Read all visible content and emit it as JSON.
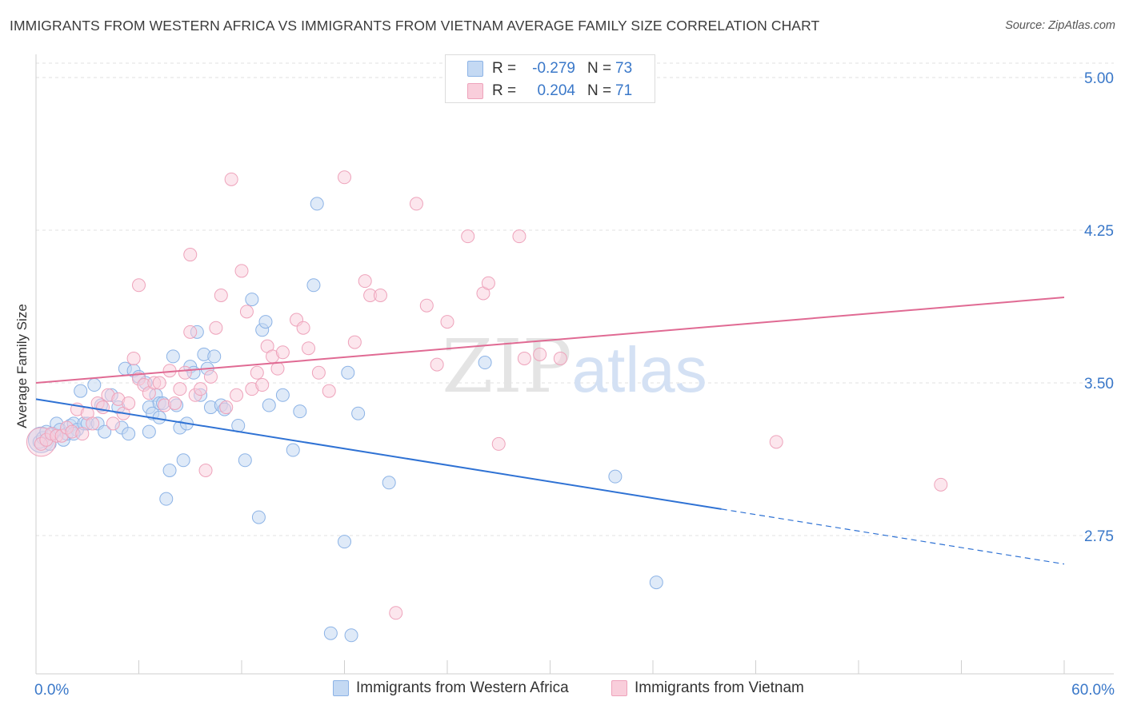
{
  "title": "IMMIGRANTS FROM WESTERN AFRICA VS IMMIGRANTS FROM VIETNAM AVERAGE FAMILY SIZE CORRELATION CHART",
  "source": "Source: ZipAtlas.com",
  "watermark": "ZIPatlas",
  "colors": {
    "blue_fill": "#c4d9f3",
    "blue_stroke": "#8cb3e6",
    "blue_line": "#2f72d4",
    "pink_fill": "#f9cedb",
    "pink_stroke": "#eea3bb",
    "pink_line": "#e06a93",
    "tick_label": "#3a78c9",
    "grid": "#e2e2e2"
  },
  "legend_top": [
    {
      "r_label": "R =",
      "r_value": "-0.279",
      "n_label": "N =",
      "n_value": "73"
    },
    {
      "r_label": "R =",
      "r_value": "0.204",
      "n_label": "N =",
      "n_value": "71"
    }
  ],
  "legend_bottom": [
    "Immigrants from Western Africa",
    "Immigrants from Vietnam"
  ],
  "chart_data": {
    "type": "scatter",
    "title": "IMMIGRANTS FROM WESTERN AFRICA VS IMMIGRANTS FROM VIETNAM AVERAGE FAMILY SIZE CORRELATION CHART",
    "xlabel": "",
    "ylabel": "Average Family Size",
    "xlim": [
      0,
      60
    ],
    "ylim": [
      2.0,
      5.15
    ],
    "x_tick_labels": [
      "0.0%",
      "60.0%"
    ],
    "y_ticks": [
      2.75,
      3.5,
      4.25,
      5.0
    ],
    "y_tick_labels": [
      "2.75",
      "3.50",
      "4.25",
      "5.00"
    ],
    "grid": true,
    "legend_position": "top-center and bottom",
    "series": [
      {
        "name": "Immigrants from Western Africa",
        "color": "#8cb3e6",
        "R": -0.279,
        "N": 73,
        "trend": {
          "x0": 0,
          "y0": 3.42,
          "x1": 40,
          "y1": 2.88,
          "dashed_to_x": 60,
          "dashed_to_y": 2.61
        },
        "points": [
          [
            0.2,
            3.21
          ],
          [
            0.4,
            3.23
          ],
          [
            0.6,
            3.26
          ],
          [
            0.8,
            3.2
          ],
          [
            1.0,
            3.25
          ],
          [
            1.2,
            3.3
          ],
          [
            1.4,
            3.27
          ],
          [
            1.6,
            3.22
          ],
          [
            1.8,
            3.25
          ],
          [
            2.0,
            3.29
          ],
          [
            2.2,
            3.3
          ],
          [
            2.4,
            3.27
          ],
          [
            2.6,
            3.46
          ],
          [
            2.8,
            3.3
          ],
          [
            3.0,
            3.3
          ],
          [
            3.4,
            3.49
          ],
          [
            3.6,
            3.3
          ],
          [
            3.8,
            3.39
          ],
          [
            4.0,
            3.26
          ],
          [
            4.4,
            3.44
          ],
          [
            4.8,
            3.38
          ],
          [
            5.0,
            3.28
          ],
          [
            5.2,
            3.57
          ],
          [
            5.4,
            3.25
          ],
          [
            5.7,
            3.56
          ],
          [
            6.0,
            3.53
          ],
          [
            6.4,
            3.5
          ],
          [
            6.6,
            3.26
          ],
          [
            6.6,
            3.38
          ],
          [
            6.8,
            3.35
          ],
          [
            7.0,
            3.44
          ],
          [
            7.2,
            3.4
          ],
          [
            7.4,
            3.4
          ],
          [
            7.6,
            2.93
          ],
          [
            7.8,
            3.07
          ],
          [
            8.0,
            3.63
          ],
          [
            8.2,
            3.39
          ],
          [
            8.4,
            3.28
          ],
          [
            8.6,
            3.12
          ],
          [
            8.8,
            3.3
          ],
          [
            9.0,
            3.58
          ],
          [
            9.2,
            3.55
          ],
          [
            9.4,
            3.75
          ],
          [
            9.6,
            3.44
          ],
          [
            9.8,
            3.64
          ],
          [
            10.0,
            3.57
          ],
          [
            10.2,
            3.38
          ],
          [
            10.4,
            3.63
          ],
          [
            10.8,
            3.39
          ],
          [
            11.0,
            3.37
          ],
          [
            11.8,
            3.29
          ],
          [
            12.2,
            3.12
          ],
          [
            12.6,
            3.91
          ],
          [
            13.0,
            2.84
          ],
          [
            13.2,
            3.76
          ],
          [
            13.4,
            3.8
          ],
          [
            13.6,
            3.39
          ],
          [
            14.4,
            3.44
          ],
          [
            15.0,
            3.17
          ],
          [
            15.4,
            3.36
          ],
          [
            16.4,
            4.38
          ],
          [
            16.2,
            3.98
          ],
          [
            17.2,
            2.27
          ],
          [
            18.0,
            2.72
          ],
          [
            18.4,
            2.26
          ],
          [
            18.8,
            3.35
          ],
          [
            18.2,
            3.55
          ],
          [
            20.6,
            3.01
          ],
          [
            26.2,
            3.6
          ],
          [
            33.8,
            3.04
          ],
          [
            36.2,
            2.52
          ],
          [
            7.2,
            3.33
          ],
          [
            2.2,
            3.25
          ]
        ]
      },
      {
        "name": "Immigrants from Vietnam",
        "color": "#eea3bb",
        "R": 0.204,
        "N": 71,
        "trend": {
          "x0": 0,
          "y0": 3.5,
          "x1": 60,
          "y1": 3.92
        },
        "points": [
          [
            0.3,
            3.2
          ],
          [
            0.6,
            3.22
          ],
          [
            0.9,
            3.25
          ],
          [
            1.2,
            3.24
          ],
          [
            1.5,
            3.24
          ],
          [
            1.8,
            3.28
          ],
          [
            2.1,
            3.26
          ],
          [
            2.4,
            3.37
          ],
          [
            2.7,
            3.25
          ],
          [
            3.0,
            3.35
          ],
          [
            3.3,
            3.3
          ],
          [
            3.6,
            3.4
          ],
          [
            3.9,
            3.38
          ],
          [
            4.2,
            3.44
          ],
          [
            4.5,
            3.3
          ],
          [
            4.8,
            3.42
          ],
          [
            5.1,
            3.35
          ],
          [
            5.4,
            3.4
          ],
          [
            5.7,
            3.62
          ],
          [
            6.0,
            3.52
          ],
          [
            6.3,
            3.49
          ],
          [
            6.6,
            3.45
          ],
          [
            6.9,
            3.5
          ],
          [
            7.2,
            3.5
          ],
          [
            7.5,
            3.39
          ],
          [
            7.8,
            3.56
          ],
          [
            8.1,
            3.4
          ],
          [
            8.4,
            3.47
          ],
          [
            8.7,
            3.55
          ],
          [
            9.0,
            3.75
          ],
          [
            9.3,
            3.44
          ],
          [
            9.6,
            3.47
          ],
          [
            9.9,
            3.07
          ],
          [
            10.2,
            3.53
          ],
          [
            10.5,
            3.77
          ],
          [
            10.8,
            3.93
          ],
          [
            11.1,
            3.38
          ],
          [
            11.4,
            4.5
          ],
          [
            11.7,
            3.44
          ],
          [
            12.0,
            4.05
          ],
          [
            12.3,
            3.85
          ],
          [
            12.6,
            3.47
          ],
          [
            12.9,
            3.55
          ],
          [
            13.2,
            3.49
          ],
          [
            13.5,
            3.68
          ],
          [
            13.8,
            3.63
          ],
          [
            14.1,
            3.57
          ],
          [
            14.4,
            3.65
          ],
          [
            15.2,
            3.81
          ],
          [
            15.6,
            3.77
          ],
          [
            15.9,
            3.67
          ],
          [
            16.5,
            3.55
          ],
          [
            17.1,
            3.46
          ],
          [
            18.0,
            4.51
          ],
          [
            18.6,
            3.7
          ],
          [
            19.2,
            4.0
          ],
          [
            19.5,
            3.93
          ],
          [
            20.1,
            3.93
          ],
          [
            22.2,
            4.38
          ],
          [
            22.8,
            3.88
          ],
          [
            23.4,
            3.59
          ],
          [
            24.0,
            3.8
          ],
          [
            25.2,
            4.22
          ],
          [
            26.1,
            3.94
          ],
          [
            26.4,
            3.99
          ],
          [
            28.2,
            4.22
          ],
          [
            28.5,
            3.62
          ],
          [
            29.4,
            3.64
          ],
          [
            30.6,
            3.62
          ],
          [
            43.2,
            3.21
          ],
          [
            52.8,
            3.0
          ]
        ]
      }
    ],
    "extra_points_pink": [
      [
        6.0,
        3.98
      ],
      [
        9.0,
        4.13
      ],
      [
        21.0,
        2.37
      ],
      [
        27.0,
        3.2
      ]
    ]
  }
}
